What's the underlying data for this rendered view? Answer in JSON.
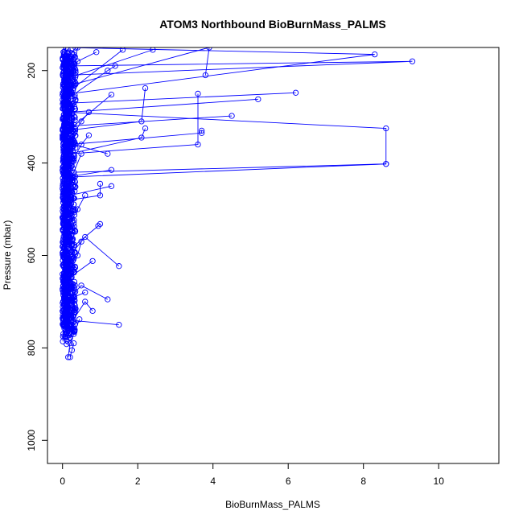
{
  "chart_data": {
    "type": "line",
    "title": "ATOM3 Northbound BioBurnMass_PALMS",
    "xlabel": "BioBurnMass_PALMS",
    "ylabel": "Pressure (mbar)",
    "xlim": [
      -0.4,
      11.6
    ],
    "ylim": [
      1050,
      150
    ],
    "y_reversed": true,
    "x_ticks": [
      0,
      2,
      4,
      6,
      8,
      10
    ],
    "y_ticks": [
      200,
      400,
      600,
      800,
      1000
    ],
    "grid": false,
    "legend": "none",
    "color": "#0000ff",
    "profiles": [
      {
        "x": [
          0.08,
          0.1,
          9.3,
          0.15,
          0.12
        ],
        "y": [
          170,
          190,
          180,
          210,
          240
        ]
      },
      {
        "x": [
          0.1,
          8.3,
          0.2,
          0.15
        ],
        "y": [
          150,
          165,
          250,
          280
        ]
      },
      {
        "x": [
          6.2,
          0.3,
          0.1
        ],
        "y": [
          248,
          270,
          300
        ]
      },
      {
        "x": [
          5.2,
          0.2,
          0.1
        ],
        "y": [
          262,
          290,
          320
        ]
      },
      {
        "x": [
          0.1,
          8.6,
          8.6,
          0.3,
          0.15
        ],
        "y": [
          290,
          325,
          402,
          420,
          440
        ]
      },
      {
        "x": [
          8.6,
          0.3,
          0.12
        ],
        "y": [
          402,
          430,
          460
        ]
      },
      {
        "x": [
          4.5,
          0.2,
          0.1
        ],
        "y": [
          298,
          320,
          350
        ]
      },
      {
        "x": [
          3.6,
          3.6,
          0.2,
          0.1
        ],
        "y": [
          250,
          360,
          380,
          400
        ]
      },
      {
        "x": [
          3.8,
          3.9,
          0.3
        ],
        "y": [
          210,
          150,
          230
        ]
      },
      {
        "x": [
          3.7,
          3.7,
          0.2
        ],
        "y": [
          330,
          335,
          360
        ]
      },
      {
        "x": [
          2.2,
          2.1,
          0.1
        ],
        "y": [
          238,
          310,
          330
        ]
      },
      {
        "x": [
          2.4,
          0.2,
          0.1
        ],
        "y": [
          155,
          215,
          260
        ]
      },
      {
        "x": [
          1.6,
          0.1,
          0.05
        ],
        "y": [
          155,
          250,
          270
        ]
      },
      {
        "x": [
          1.4,
          1.2,
          0.15
        ],
        "y": [
          190,
          200,
          260
        ]
      },
      {
        "x": [
          1.3,
          0.15,
          0.1
        ],
        "y": [
          252,
          330,
          360
        ]
      },
      {
        "x": [
          2.2,
          2.1,
          0.2
        ],
        "y": [
          325,
          345,
          380
        ]
      },
      {
        "x": [
          1.2,
          0.3,
          0.1
        ],
        "y": [
          380,
          360,
          420
        ]
      },
      {
        "x": [
          1.3,
          0.15,
          0.08
        ],
        "y": [
          415,
          430,
          460
        ]
      },
      {
        "x": [
          1.3,
          0.2,
          0.1
        ],
        "y": [
          450,
          470,
          500
        ]
      },
      {
        "x": [
          1.0,
          1.0,
          0.2
        ],
        "y": [
          445,
          470,
          480
        ]
      },
      {
        "x": [
          1.0,
          0.95,
          0.3,
          0.1
        ],
        "y": [
          532,
          536,
          580,
          610
        ]
      },
      {
        "x": [
          1.5,
          0.6,
          0.2,
          0.1
        ],
        "y": [
          623,
          560,
          600,
          640
        ]
      },
      {
        "x": [
          0.8,
          0.15,
          0.1
        ],
        "y": [
          612,
          650,
          680
        ]
      },
      {
        "x": [
          1.2,
          0.5,
          0.1
        ],
        "y": [
          695,
          665,
          700
        ]
      },
      {
        "x": [
          1.5,
          0.2,
          0.1
        ],
        "y": [
          750,
          740,
          760
        ]
      },
      {
        "x": [
          0.8,
          0.6,
          0.2
        ],
        "y": [
          720,
          700,
          750
        ]
      },
      {
        "x": [
          0.45,
          0.3,
          0.2,
          0.15
        ],
        "y": [
          738,
          770,
          790,
          820
        ]
      },
      {
        "x": [
          0.3,
          0.25,
          0.2
        ],
        "y": [
          790,
          805,
          820
        ]
      },
      {
        "x": [
          0.7,
          0.5,
          0.2,
          0.1
        ],
        "y": [
          290,
          310,
          350,
          400
        ]
      },
      {
        "x": [
          0.6,
          0.4,
          0.2,
          0.1
        ],
        "y": [
          470,
          500,
          520,
          560
        ]
      },
      {
        "x": [
          0.5,
          0.3,
          0.15
        ],
        "y": [
          380,
          420,
          440
        ]
      },
      {
        "x": [
          0.4,
          0.3,
          0.2,
          0.1
        ],
        "y": [
          150,
          200,
          230,
          260
        ]
      },
      {
        "x": [
          0.9,
          0.4,
          0.2
        ],
        "y": [
          160,
          180,
          210
        ]
      },
      {
        "x": [
          0.7,
          0.5,
          0.3,
          0.1
        ],
        "y": [
          340,
          360,
          390,
          410
        ]
      },
      {
        "x": [
          0.5,
          0.4,
          0.2
        ],
        "y": [
          570,
          600,
          620
        ]
      },
      {
        "x": [
          0.6,
          0.3,
          0.1
        ],
        "y": [
          680,
          690,
          710
        ]
      },
      {
        "x": [
          0.3,
          0.2,
          0.1
        ],
        "y": [
          530,
          560,
          590
        ]
      }
    ],
    "dense_clusters": [
      {
        "x_range": [
          0.0,
          0.35
        ],
        "y_range": [
          150,
          810
        ]
      },
      {
        "x_range": [
          0.0,
          0.15
        ],
        "y_range": [
          150,
          810
        ]
      }
    ]
  }
}
